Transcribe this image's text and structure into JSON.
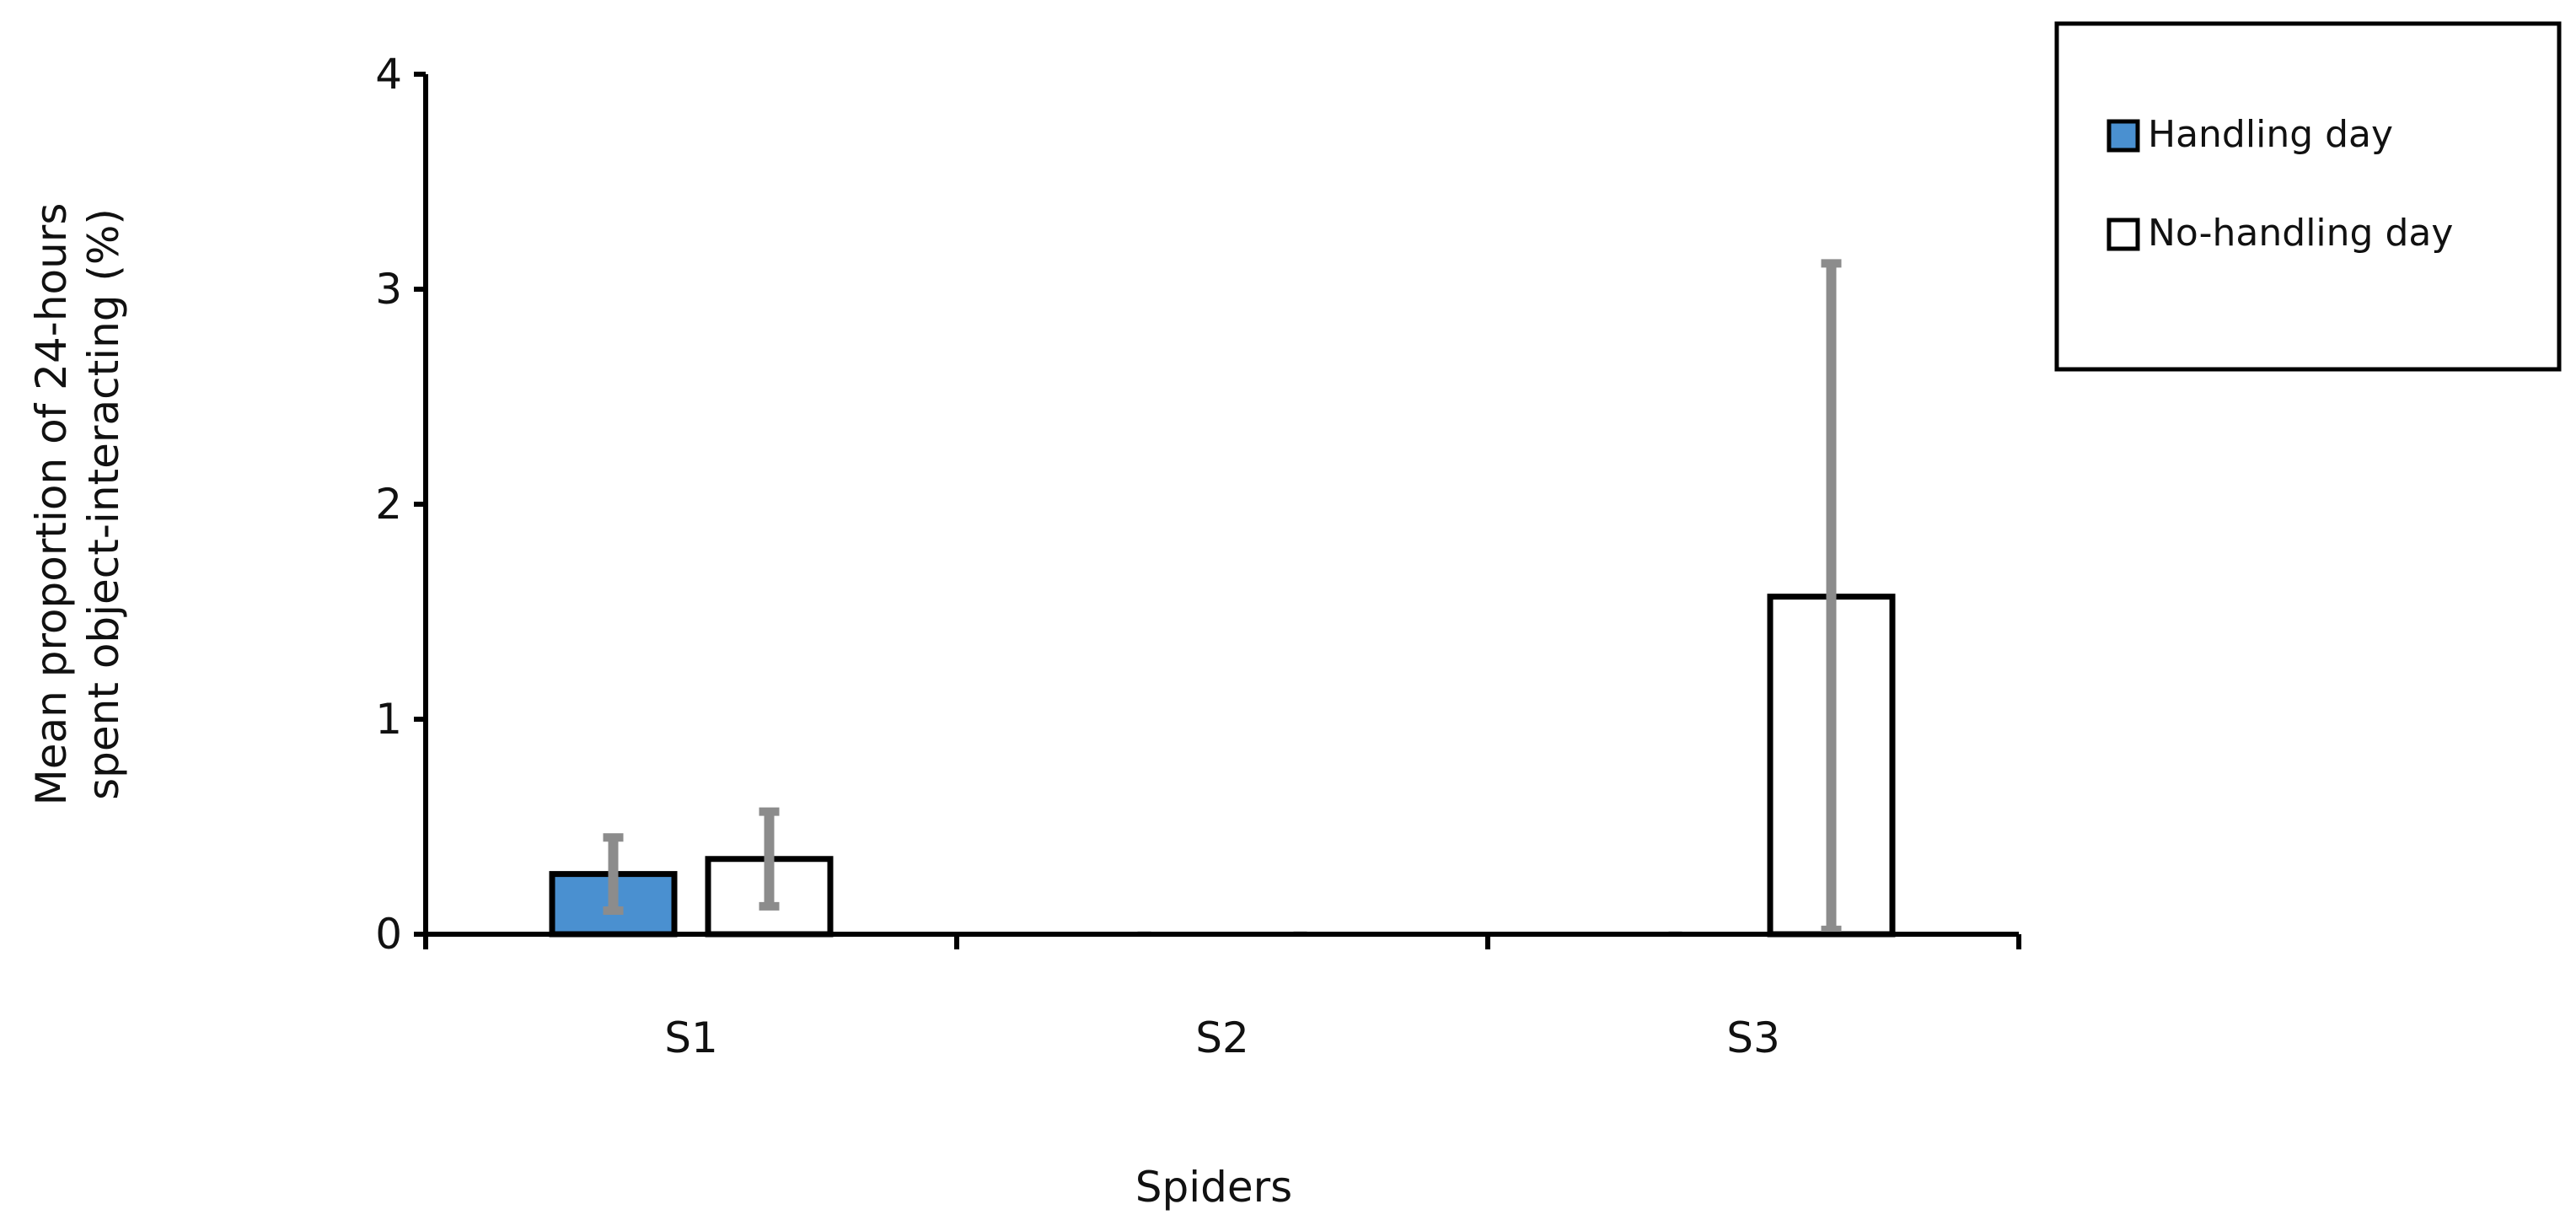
{
  "chart_data": {
    "type": "bar",
    "title": "",
    "xlabel": "Spiders",
    "ylabel_lines": [
      "Mean proportion of  24-hours",
      "spent object-interacting (%)"
    ],
    "categories": [
      "S1",
      "S2",
      "S3"
    ],
    "ylim": [
      0,
      4
    ],
    "yticks": [
      "0",
      "1",
      "2",
      "3",
      "4"
    ],
    "series": [
      {
        "name": "Handling day",
        "color": "#4a90d0",
        "values": [
          0.28,
          0,
          0
        ],
        "error": [
          0.17,
          0,
          0
        ]
      },
      {
        "name": "No-handling day",
        "color": "#ffffff",
        "values": [
          0.35,
          0,
          1.57
        ],
        "error": [
          0.22,
          0,
          1.55
        ]
      }
    ],
    "legend_position": "top-right",
    "grid": false,
    "error_bar_color": "#8c8c8c",
    "bar_outline_color": "#000000"
  }
}
